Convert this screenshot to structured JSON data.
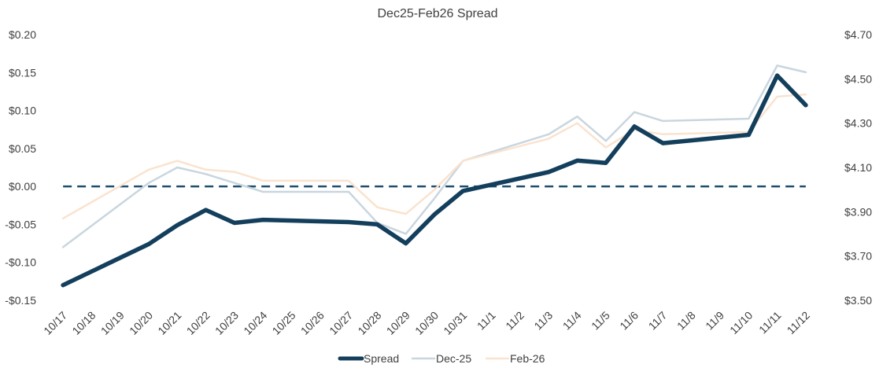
{
  "chart_data": {
    "type": "line",
    "title": "Dec25-Feb26 Spread",
    "categories": [
      "10/17",
      "10/18",
      "10/19",
      "10/20",
      "10/21",
      "10/22",
      "10/23",
      "10/24",
      "10/25",
      "10/26",
      "10/27",
      "10/28",
      "10/29",
      "10/30",
      "10/31",
      "11/1",
      "11/2",
      "11/3",
      "11/4",
      "11/5",
      "11/6",
      "11/7",
      "11/8",
      "11/9",
      "11/10",
      "11/11",
      "11/12"
    ],
    "left_axis": {
      "ylim": [
        -0.15,
        0.2
      ],
      "ticks": [
        0.2,
        0.15,
        0.1,
        0.05,
        0.0,
        -0.05,
        -0.1,
        -0.15
      ],
      "tick_labels": [
        "$0.20",
        "$0.15",
        "$0.10",
        "$0.05",
        "$0.00",
        "-$0.05",
        "-$0.10",
        "-$0.15"
      ]
    },
    "right_axis": {
      "ylim": [
        3.5,
        4.7
      ],
      "ticks": [
        4.7,
        4.5,
        4.3,
        4.1,
        3.9,
        3.7,
        3.5
      ],
      "tick_labels": [
        "$4.70",
        "$4.50",
        "$4.30",
        "$4.10",
        "$3.90",
        "$3.70",
        "$3.50"
      ]
    },
    "reference_line": {
      "axis": "left",
      "value": 0.0,
      "style": "dashed",
      "color": "#1f4e6e"
    },
    "series": [
      {
        "name": "Spread",
        "axis": "left",
        "color": "#133f5c",
        "values": [
          -0.13,
          null,
          null,
          -0.076,
          -0.051,
          -0.031,
          -0.048,
          -0.044,
          null,
          null,
          -0.047,
          -0.05,
          -0.075,
          -0.037,
          -0.006,
          null,
          null,
          0.019,
          0.034,
          0.031,
          0.079,
          0.057,
          null,
          null,
          0.068,
          0.146,
          0.107
        ]
      },
      {
        "name": "Dec-25",
        "axis": "right",
        "color": "#c9d6de",
        "values": [
          3.74,
          null,
          null,
          4.03,
          4.1,
          4.07,
          4.03,
          3.99,
          null,
          null,
          3.99,
          3.85,
          3.8,
          3.96,
          4.13,
          null,
          null,
          4.25,
          4.33,
          4.22,
          4.35,
          4.31,
          null,
          null,
          4.32,
          4.56,
          4.53
        ]
      },
      {
        "name": "Feb-26",
        "axis": "right",
        "color": "#fae3cf",
        "values": [
          3.87,
          null,
          null,
          4.09,
          4.13,
          4.09,
          4.08,
          4.04,
          null,
          null,
          4.04,
          3.92,
          3.89,
          4.0,
          4.13,
          null,
          null,
          4.23,
          4.3,
          4.19,
          4.27,
          4.25,
          null,
          null,
          4.26,
          4.42,
          4.43
        ]
      }
    ],
    "legend": {
      "position": "bottom",
      "entries": [
        "Spread",
        "Dec-25",
        "Feb-26"
      ]
    }
  }
}
